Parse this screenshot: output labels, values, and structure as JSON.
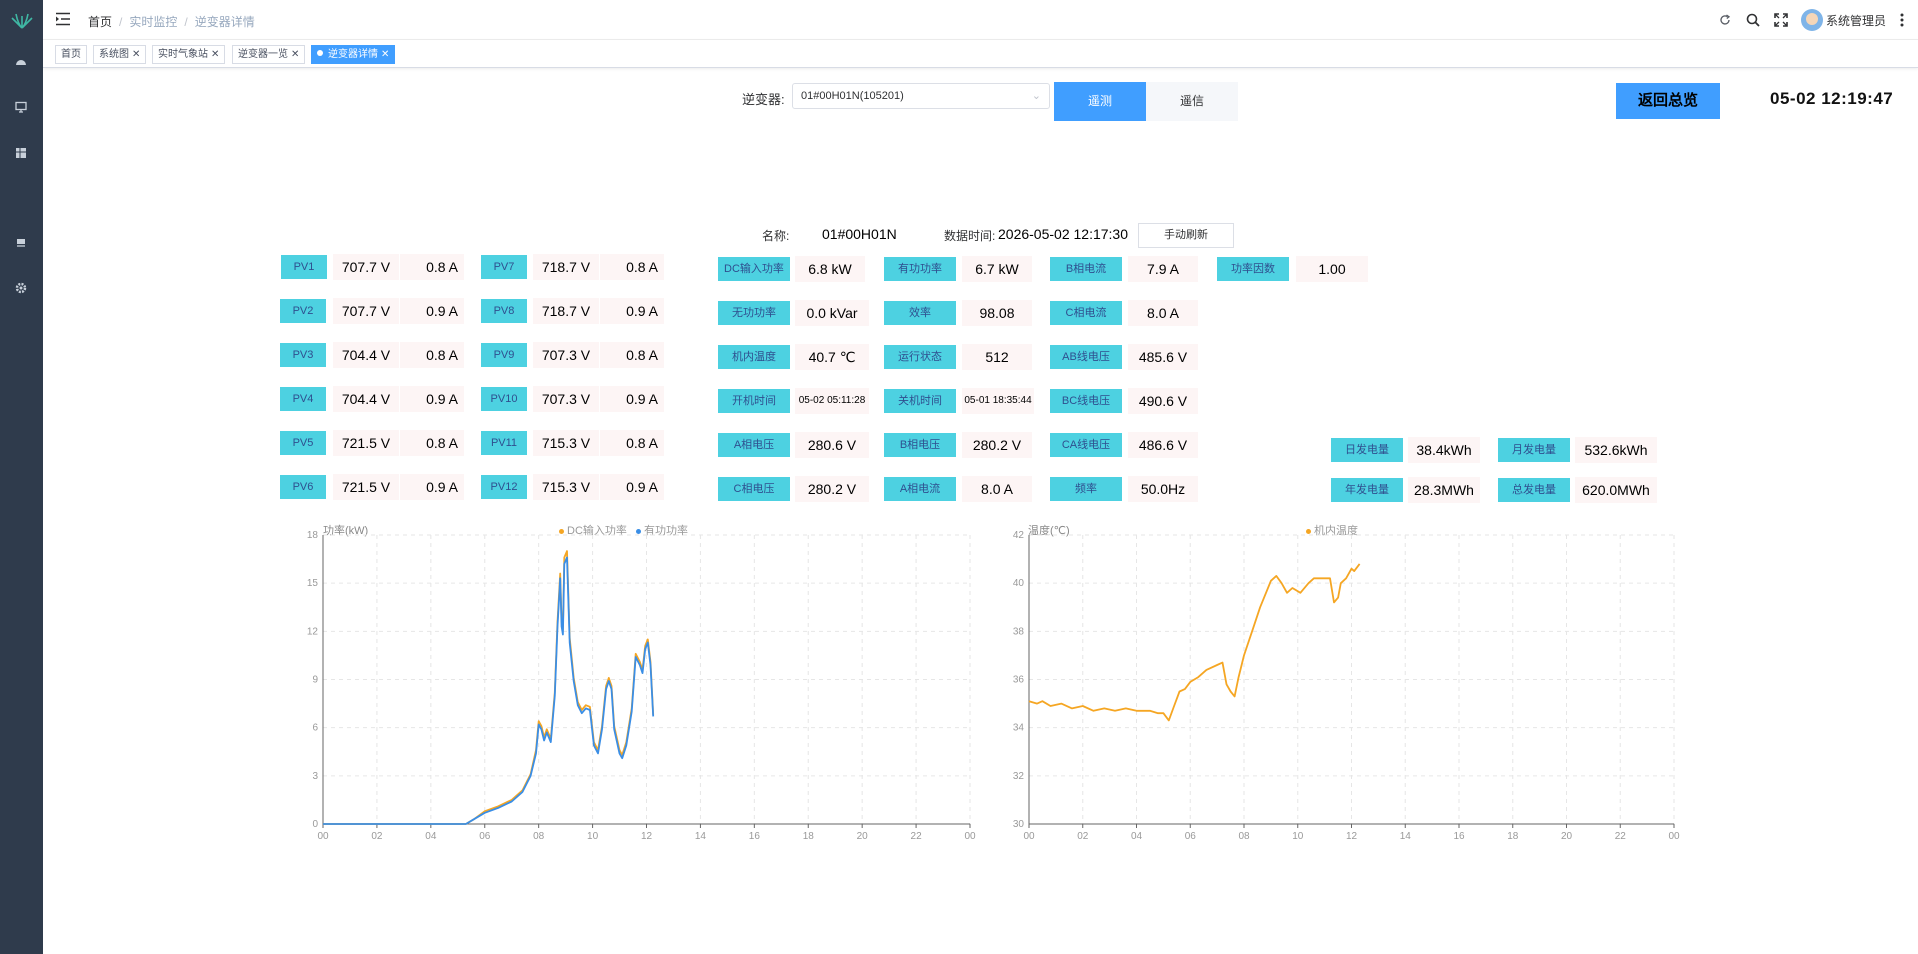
{
  "breadcrumb": [
    "首页",
    "实时监控",
    "逆变器详情"
  ],
  "user": {
    "name": "系统管理员"
  },
  "tags": [
    {
      "label": "首页",
      "active": false
    },
    {
      "label": "系统图",
      "active": false
    },
    {
      "label": "实时气象站",
      "active": false
    },
    {
      "label": "逆变器一览",
      "active": false
    },
    {
      "label": "逆变器详情",
      "active": true
    }
  ],
  "toolbar": {
    "inverter_label": "逆变器:",
    "inverter_value": "01#00H01N(105201)",
    "tele_label": "遥测",
    "comm_label": "遥信",
    "back_label": "返回总览",
    "clock": "05-02 12:19:47"
  },
  "info": {
    "name_label": "名称:",
    "name_value": "01#00H01N",
    "time_label": "数据时间:",
    "time_value": "2026-05-02 12:17:30",
    "refresh_label": "手动刷新"
  },
  "pv": [
    {
      "label": "PV1",
      "voltage": "707.7 V",
      "current": "0.8 A"
    },
    {
      "label": "PV2",
      "voltage": "707.7 V",
      "current": "0.9 A"
    },
    {
      "label": "PV3",
      "voltage": "704.4 V",
      "current": "0.8 A"
    },
    {
      "label": "PV4",
      "voltage": "704.4 V",
      "current": "0.9 A"
    },
    {
      "label": "PV5",
      "voltage": "721.5 V",
      "current": "0.8 A"
    },
    {
      "label": "PV6",
      "voltage": "721.5 V",
      "current": "0.9 A"
    },
    {
      "label": "PV7",
      "voltage": "718.7 V",
      "current": "0.8 A"
    },
    {
      "label": "PV8",
      "voltage": "718.7 V",
      "current": "0.9 A"
    },
    {
      "label": "PV9",
      "voltage": "707.3 V",
      "current": "0.8 A"
    },
    {
      "label": "PV10",
      "voltage": "707.3 V",
      "current": "0.9 A"
    },
    {
      "label": "PV11",
      "voltage": "715.3 V",
      "current": "0.8 A"
    },
    {
      "label": "PV12",
      "voltage": "715.3 V",
      "current": "0.9 A"
    }
  ],
  "metrics": [
    [
      {
        "label": "DC输入功率",
        "value": "6.8 kW"
      },
      {
        "label": "有功功率",
        "value": "6.7 kW"
      },
      {
        "label": "B相电流",
        "value": "7.9 A"
      },
      {
        "label": "功率因数",
        "value": "1.00"
      }
    ],
    [
      {
        "label": "无功功率",
        "value": "0.0 kVar"
      },
      {
        "label": "效率",
        "value": "98.08"
      },
      {
        "label": "C相电流",
        "value": "8.0 A"
      }
    ],
    [
      {
        "label": "机内温度",
        "value": "40.7 ℃"
      },
      {
        "label": "运行状态",
        "value": "512"
      },
      {
        "label": "AB线电压",
        "value": "485.6 V"
      }
    ],
    [
      {
        "label": "开机时间",
        "value": "05-02 05:11:28"
      },
      {
        "label": "关机时间",
        "value": "05-01 18:35:44"
      },
      {
        "label": "BC线电压",
        "value": "490.6 V"
      }
    ],
    [
      {
        "label": "A相电压",
        "value": "280.6 V"
      },
      {
        "label": "B相电压",
        "value": "280.2 V"
      },
      {
        "label": "CA线电压",
        "value": "486.6 V"
      }
    ],
    [
      {
        "label": "C相电压",
        "value": "280.2 V"
      },
      {
        "label": "A相电流",
        "value": "8.0 A"
      },
      {
        "label": "频率",
        "value": "50.0Hz"
      }
    ]
  ],
  "energy": [
    {
      "label": "日发电量",
      "value": "38.4kWh"
    },
    {
      "label": "月发电量",
      "value": "532.6kWh"
    },
    {
      "label": "年发电量",
      "value": "28.3MWh"
    },
    {
      "label": "总发电量",
      "value": "620.0MWh"
    }
  ],
  "chart_data": [
    {
      "type": "line",
      "title": "功率(kW)",
      "x_ticks": [
        "00",
        "02",
        "04",
        "06",
        "08",
        "10",
        "12",
        "14",
        "16",
        "18",
        "20",
        "22",
        "00"
      ],
      "xlim": [
        0,
        24
      ],
      "ylim": [
        0,
        18
      ],
      "y_ticks": [
        0,
        3,
        6,
        9,
        12,
        15,
        18
      ],
      "grid": true,
      "legend_position": "top-center",
      "series": [
        {
          "name": "DC输入功率",
          "color": "#f5a623",
          "points": [
            [
              0,
              0
            ],
            [
              5.3,
              0
            ],
            [
              5.6,
              0.3
            ],
            [
              6.0,
              0.8
            ],
            [
              6.5,
              1.1
            ],
            [
              7.0,
              1.5
            ],
            [
              7.4,
              2.1
            ],
            [
              7.7,
              3.1
            ],
            [
              7.9,
              4.6
            ],
            [
              8.0,
              6.4
            ],
            [
              8.1,
              6.1
            ],
            [
              8.2,
              5.4
            ],
            [
              8.3,
              5.9
            ],
            [
              8.45,
              5.3
            ],
            [
              8.6,
              8.2
            ],
            [
              8.7,
              12.6
            ],
            [
              8.8,
              15.6
            ],
            [
              8.85,
              12.6
            ],
            [
              8.9,
              12.1
            ],
            [
              8.95,
              16.6
            ],
            [
              9.05,
              17.0
            ],
            [
              9.15,
              11.6
            ],
            [
              9.3,
              9.1
            ],
            [
              9.45,
              7.6
            ],
            [
              9.6,
              7.1
            ],
            [
              9.75,
              7.4
            ],
            [
              9.9,
              7.3
            ],
            [
              10.05,
              5.1
            ],
            [
              10.2,
              4.6
            ],
            [
              10.35,
              6.1
            ],
            [
              10.5,
              8.6
            ],
            [
              10.6,
              9.1
            ],
            [
              10.7,
              8.6
            ],
            [
              10.8,
              6.1
            ],
            [
              11.0,
              4.6
            ],
            [
              11.1,
              4.3
            ],
            [
              11.25,
              5.1
            ],
            [
              11.45,
              7.2
            ],
            [
              11.6,
              10.6
            ],
            [
              11.75,
              10.1
            ],
            [
              11.85,
              9.6
            ],
            [
              11.95,
              11.1
            ],
            [
              12.05,
              11.5
            ],
            [
              12.15,
              10.1
            ],
            [
              12.25,
              6.8
            ]
          ]
        },
        {
          "name": "有功功率",
          "color": "#3a8ee6",
          "points": [
            [
              0,
              0
            ],
            [
              5.3,
              0
            ],
            [
              5.6,
              0.3
            ],
            [
              6.0,
              0.7
            ],
            [
              6.5,
              1.0
            ],
            [
              7.0,
              1.4
            ],
            [
              7.4,
              2.0
            ],
            [
              7.7,
              3.0
            ],
            [
              7.9,
              4.4
            ],
            [
              8.0,
              6.2
            ],
            [
              8.1,
              5.9
            ],
            [
              8.2,
              5.2
            ],
            [
              8.3,
              5.7
            ],
            [
              8.45,
              5.1
            ],
            [
              8.6,
              8.0
            ],
            [
              8.7,
              12.3
            ],
            [
              8.8,
              15.3
            ],
            [
              8.85,
              12.3
            ],
            [
              8.9,
              11.8
            ],
            [
              8.95,
              16.2
            ],
            [
              9.05,
              16.6
            ],
            [
              9.15,
              11.3
            ],
            [
              9.3,
              8.9
            ],
            [
              9.45,
              7.4
            ],
            [
              9.6,
              6.9
            ],
            [
              9.75,
              7.2
            ],
            [
              9.9,
              7.1
            ],
            [
              10.05,
              4.9
            ],
            [
              10.2,
              4.4
            ],
            [
              10.35,
              5.9
            ],
            [
              10.5,
              8.4
            ],
            [
              10.6,
              8.9
            ],
            [
              10.7,
              8.4
            ],
            [
              10.8,
              5.9
            ],
            [
              11.0,
              4.4
            ],
            [
              11.1,
              4.1
            ],
            [
              11.25,
              4.9
            ],
            [
              11.45,
              7.0
            ],
            [
              11.6,
              10.4
            ],
            [
              11.75,
              9.9
            ],
            [
              11.85,
              9.4
            ],
            [
              11.95,
              10.9
            ],
            [
              12.05,
              11.3
            ],
            [
              12.15,
              9.9
            ],
            [
              12.25,
              6.7
            ]
          ]
        }
      ]
    },
    {
      "type": "line",
      "title": "温度(℃)",
      "x_ticks": [
        "00",
        "02",
        "04",
        "06",
        "08",
        "10",
        "12",
        "14",
        "16",
        "18",
        "20",
        "22",
        "00"
      ],
      "xlim": [
        0,
        24
      ],
      "ylim": [
        30,
        42
      ],
      "y_ticks": [
        30,
        32,
        34,
        36,
        38,
        40,
        42
      ],
      "grid": true,
      "legend_position": "top-center",
      "series": [
        {
          "name": "机内温度",
          "color": "#f5a623",
          "points": [
            [
              0,
              35.1
            ],
            [
              0.3,
              35.0
            ],
            [
              0.5,
              35.1
            ],
            [
              0.8,
              34.9
            ],
            [
              1.2,
              35.0
            ],
            [
              1.6,
              34.8
            ],
            [
              2.0,
              34.9
            ],
            [
              2.4,
              34.7
            ],
            [
              2.8,
              34.8
            ],
            [
              3.2,
              34.7
            ],
            [
              3.6,
              34.8
            ],
            [
              4.0,
              34.7
            ],
            [
              4.5,
              34.7
            ],
            [
              4.8,
              34.6
            ],
            [
              5.0,
              34.6
            ],
            [
              5.2,
              34.3
            ],
            [
              5.4,
              34.9
            ],
            [
              5.6,
              35.5
            ],
            [
              5.8,
              35.6
            ],
            [
              6.0,
              35.9
            ],
            [
              6.3,
              36.1
            ],
            [
              6.6,
              36.4
            ],
            [
              7.0,
              36.6
            ],
            [
              7.2,
              36.7
            ],
            [
              7.35,
              35.8
            ],
            [
              7.5,
              35.5
            ],
            [
              7.65,
              35.3
            ],
            [
              7.8,
              36.1
            ],
            [
              8.0,
              37.0
            ],
            [
              8.3,
              38.0
            ],
            [
              8.6,
              39.0
            ],
            [
              9.0,
              40.1
            ],
            [
              9.2,
              40.3
            ],
            [
              9.4,
              40.0
            ],
            [
              9.6,
              39.6
            ],
            [
              9.8,
              39.8
            ],
            [
              10.1,
              39.6
            ],
            [
              10.4,
              40.0
            ],
            [
              10.6,
              40.2
            ],
            [
              10.9,
              40.2
            ],
            [
              11.2,
              40.2
            ],
            [
              11.35,
              39.2
            ],
            [
              11.5,
              39.4
            ],
            [
              11.6,
              40.0
            ],
            [
              11.8,
              40.2
            ],
            [
              12.0,
              40.6
            ],
            [
              12.1,
              40.5
            ],
            [
              12.3,
              40.8
            ]
          ]
        }
      ]
    }
  ]
}
